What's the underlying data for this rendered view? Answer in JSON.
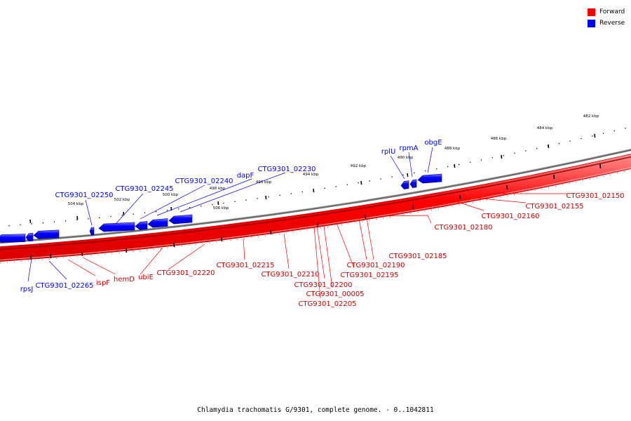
{
  "legend": [
    {
      "label": "Forward",
      "color": "#ff0000"
    },
    {
      "label": "Reverse",
      "color": "#0000ff"
    }
  ],
  "caption": "Chlamydia trachomatis G/9301, complete genome. - 0..1042811",
  "colors": {
    "forward": "#ff0000",
    "reverse": "#0000ff",
    "backbone": "#808080"
  },
  "ticks": [
    "506 kbp",
    "504 kbp",
    "502 kbp",
    "500 kbp",
    "498 kbp",
    "496 kbp",
    "494 kbp",
    "492 kbp",
    "490 kbp",
    "488 kbp",
    "486 kbp",
    "484 kbp",
    "482 kbp"
  ],
  "reverse_labels": [
    "rpsJ",
    "CTG9301_02265",
    "CTG9301_02250",
    "CTG9301_02245",
    "CTG9301_02240",
    "dapF",
    "CTG9301_02230",
    "rplU",
    "rpmA",
    "obgE"
  ],
  "forward_labels": [
    "ispF",
    "hemD",
    "ubiE",
    "CTG9301_02220",
    "CTG9301_02215",
    "CTG9301_02210",
    "CTG9301_02200",
    "CTG9301_00005",
    "CTG9301_02205",
    "CTG9301_02195",
    "CTG9301_02190",
    "CTG9301_02185",
    "CTG9301_02180",
    "CTG9301_02160",
    "CTG9301_02155",
    "CTG9301_02150"
  ]
}
